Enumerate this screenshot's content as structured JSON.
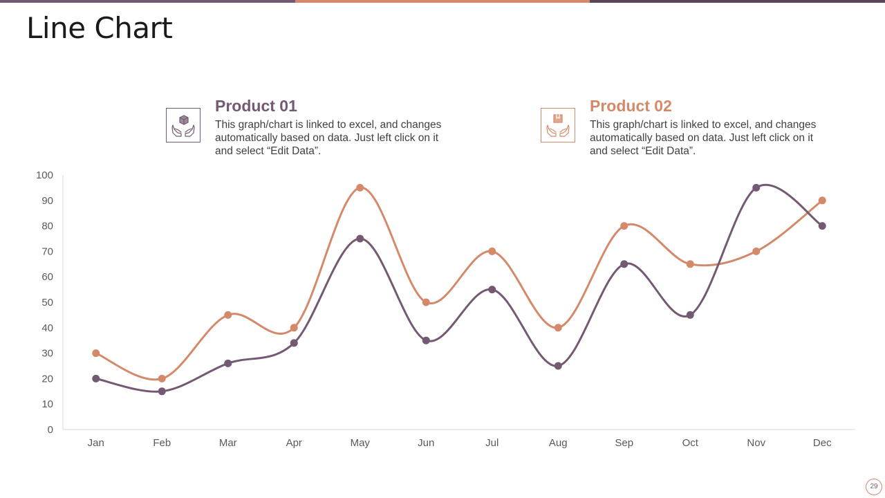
{
  "title": "Line Chart",
  "colors": {
    "product1": "#735972",
    "product2": "#D4896A",
    "topbar": [
      "#735972",
      "#D4896A",
      "#5a4458"
    ]
  },
  "legend": [
    {
      "title": "Product 01",
      "icon": "hands-holding-box-icon",
      "description": "This graph/chart is linked to excel, and changes automatically based on data. Just left click on it and select “Edit Data”."
    },
    {
      "title": "Product 02",
      "icon": "hands-holding-package-icon",
      "description": "This graph/chart is linked to excel, and changes automatically based on data. Just left click on it and select “Edit Data”."
    }
  ],
  "chart_data": {
    "type": "line",
    "smooth": true,
    "title": "",
    "xlabel": "",
    "ylabel": "",
    "categories": [
      "Jan",
      "Feb",
      "Mar",
      "Apr",
      "May",
      "Jun",
      "Jul",
      "Aug",
      "Sep",
      "Oct",
      "Nov",
      "Dec"
    ],
    "ylim": [
      0,
      100
    ],
    "yticks": [
      0,
      10,
      20,
      30,
      40,
      50,
      60,
      70,
      80,
      90,
      100
    ],
    "grid": false,
    "series": [
      {
        "name": "Product 01",
        "values": [
          20,
          15,
          26,
          34,
          75,
          35,
          55,
          25,
          65,
          45,
          95,
          80
        ]
      },
      {
        "name": "Product 02",
        "values": [
          30,
          20,
          45,
          40,
          95,
          50,
          70,
          40,
          80,
          65,
          70,
          90
        ]
      }
    ]
  },
  "page_number": "29"
}
